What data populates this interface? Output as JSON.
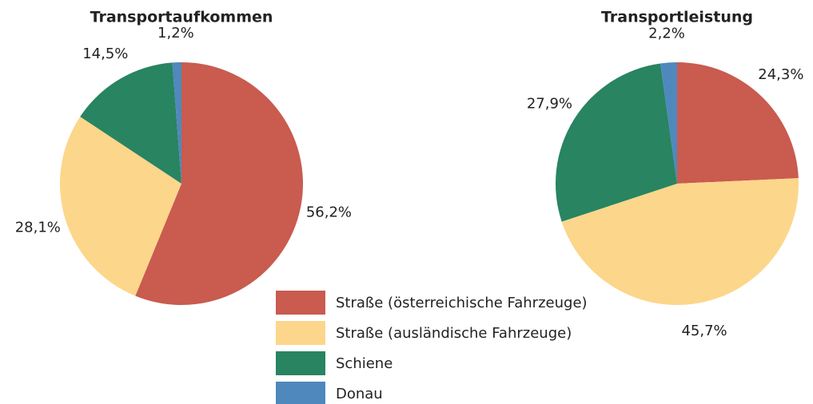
{
  "chart_data": [
    {
      "type": "pie",
      "title": "Transportaufkommen",
      "values": [
        56.2,
        28.1,
        14.5,
        1.2
      ],
      "value_labels": [
        "56,2%",
        "28,1%",
        "14,5%",
        "1,2%"
      ]
    },
    {
      "type": "pie",
      "title": "Transportleistung",
      "values": [
        24.3,
        45.7,
        27.9,
        2.2
      ],
      "value_labels": [
        "24,3%",
        "45,7%",
        "27,9%",
        "2,2%"
      ]
    }
  ],
  "legend": {
    "labels": [
      "Straße (österreichische Fahrzeuge)",
      "Straße (ausländische Fahrzeuge)",
      "Schiene",
      "Donau"
    ],
    "colors": [
      "#c95b4f",
      "#fcd68a",
      "#288461",
      "#4f88bd"
    ]
  }
}
